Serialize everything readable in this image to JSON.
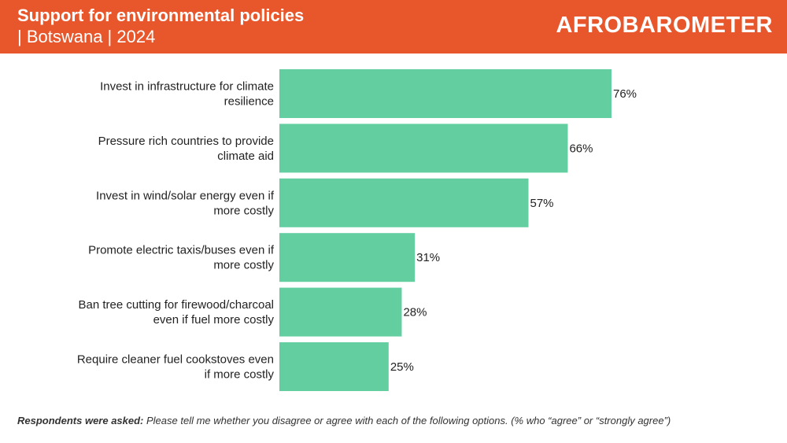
{
  "header": {
    "title": "Support for environmental policies",
    "subtitle": "| Botswana | 2024",
    "logo_text": "AFROBAROMETER",
    "background_color": "#E8572C"
  },
  "chart_data": {
    "type": "bar",
    "orientation": "horizontal",
    "categories": [
      [
        "Invest in infrastructure for climate",
        "resilience"
      ],
      [
        "Pressure rich countries to provide",
        "climate aid"
      ],
      [
        "Invest in wind/solar energy even if",
        "more costly"
      ],
      [
        "Promote electric taxis/buses even if",
        "more costly"
      ],
      [
        "Ban tree cutting for firewood/charcoal",
        "even if fuel more costly"
      ],
      [
        "Require cleaner fuel cookstoves even",
        "if more costly"
      ]
    ],
    "values": [
      76,
      66,
      57,
      31,
      28,
      25
    ],
    "value_labels": [
      "76%",
      "66%",
      "57%",
      "31%",
      "28%",
      "25%"
    ],
    "xlim": [
      0,
      100
    ],
    "bar_color": "#63CFA1",
    "grid": false,
    "legend": "none"
  },
  "footnote": {
    "lead": "Respondents were asked:",
    "text": " Please tell me whether you disagree or agree with each of the following options. (% who “agree” or “strongly agree”)"
  }
}
